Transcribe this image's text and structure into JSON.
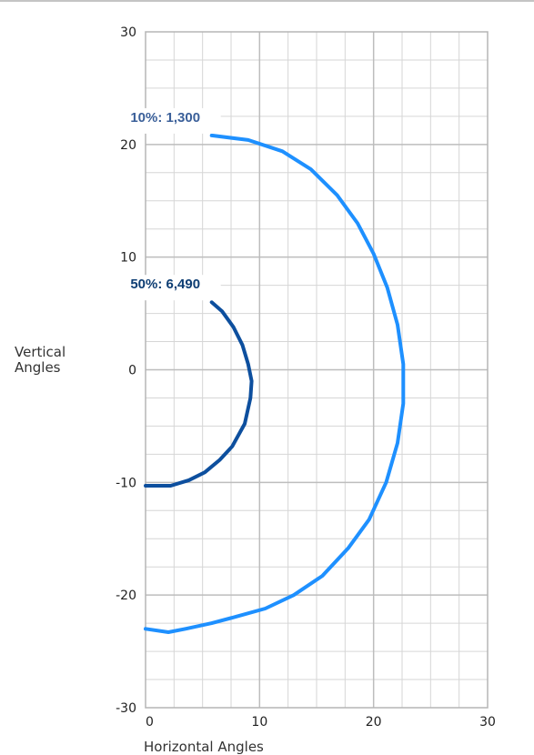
{
  "chart_data": {
    "type": "line",
    "title": "",
    "xlabel": "Horizontal Angles",
    "ylabel": [
      "Vertical",
      "Angles"
    ],
    "xlim": [
      0,
      30
    ],
    "ylim": [
      -30,
      30
    ],
    "xticks": [
      "0",
      "10",
      "20",
      "30"
    ],
    "yticks": [
      "30",
      "20",
      "10",
      "0",
      "-10",
      "-20",
      "-30"
    ],
    "grid": true,
    "minor_step": 2.5,
    "series": [
      {
        "name": "10%: 1,300",
        "color": "#1e90ff",
        "label_color": "#3a5f99",
        "points": [
          [
            5.8,
            20.8
          ],
          [
            9,
            20.4
          ],
          [
            12,
            19.4
          ],
          [
            14.5,
            17.8
          ],
          [
            16.8,
            15.5
          ],
          [
            18.6,
            13
          ],
          [
            20,
            10.3
          ],
          [
            21.2,
            7.3
          ],
          [
            22.1,
            4
          ],
          [
            22.6,
            0.5
          ],
          [
            22.6,
            -3
          ],
          [
            22.1,
            -6.5
          ],
          [
            21.1,
            -10
          ],
          [
            19.6,
            -13.3
          ],
          [
            17.8,
            -15.8
          ],
          [
            15.5,
            -18.3
          ],
          [
            13,
            -20
          ],
          [
            10.5,
            -21.2
          ],
          [
            8,
            -21.9
          ],
          [
            5.8,
            -22.5
          ],
          [
            3.5,
            -23
          ],
          [
            2,
            -23.3
          ],
          [
            0,
            -23
          ]
        ]
      },
      {
        "name": "50%: 6,490",
        "color": "#0d4f9e",
        "label_color": "#0d3d73",
        "points": [
          [
            5.8,
            6
          ],
          [
            6.7,
            5.2
          ],
          [
            7.7,
            3.8
          ],
          [
            8.5,
            2.2
          ],
          [
            9.0,
            0.5
          ],
          [
            9.3,
            -1
          ],
          [
            9.2,
            -2.5
          ],
          [
            8.7,
            -4.8
          ],
          [
            7.6,
            -6.8
          ],
          [
            6.5,
            -8
          ],
          [
            5.2,
            -9.1
          ],
          [
            3.8,
            -9.8
          ],
          [
            2.2,
            -10.3
          ],
          [
            0,
            -10.3
          ]
        ]
      }
    ]
  }
}
